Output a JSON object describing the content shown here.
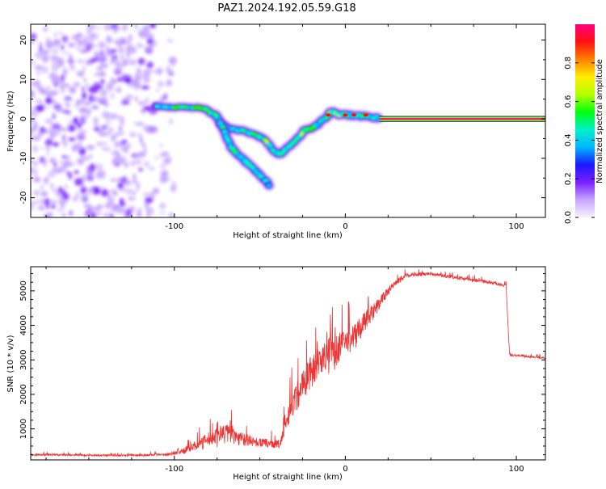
{
  "title": "PAZ1.2024.192.05.59.G18",
  "chart_data": [
    {
      "type": "heatmap",
      "xlabel": "Height of straight line (km)",
      "ylabel": "Frequency (Hz)",
      "xlim": [
        -184,
        117
      ],
      "ylim": [
        -25,
        24
      ],
      "x_ticks": [
        -100,
        0,
        100
      ],
      "x_tick_labels": [
        "-100",
        "0",
        "100"
      ],
      "y_ticks": [
        -20,
        -10,
        0,
        10,
        20
      ],
      "y_tick_labels": [
        "-20",
        "-10",
        "0",
        "10",
        "20"
      ],
      "grid": false,
      "colorbar": {
        "label": "Normalized spectral amplitude",
        "ticks": [
          0.0,
          0.2,
          0.4,
          0.6,
          0.8
        ],
        "tick_labels": [
          "0.0",
          "0.2",
          "0.4",
          "0.6",
          "0.8"
        ],
        "range": [
          0,
          1
        ],
        "colors": [
          "#f7f2ff",
          "#c7a6ff",
          "#7a1fff",
          "#1a18ff",
          "#00b6ff",
          "#00f0c8",
          "#00ff10",
          "#b4ff00",
          "#ffee00",
          "#ff8000",
          "#ff1010",
          "#ff0080"
        ]
      },
      "noise_region": {
        "x": [
          -184,
          -100
        ],
        "y": [
          -25,
          24
        ]
      },
      "upper_branch": [
        {
          "x": -110,
          "y": 3
        },
        {
          "x": -95,
          "y": 3
        },
        {
          "x": -82,
          "y": 2.5
        },
        {
          "x": -76,
          "y": 1
        },
        {
          "x": -73,
          "y": -1
        },
        {
          "x": -68,
          "y": -2.5
        },
        {
          "x": -60,
          "y": -3
        },
        {
          "x": -52,
          "y": -4
        },
        {
          "x": -48,
          "y": -5
        },
        {
          "x": -42,
          "y": -8
        },
        {
          "x": -38,
          "y": -9
        },
        {
          "x": -33,
          "y": -7
        },
        {
          "x": -28,
          "y": -5
        },
        {
          "x": -24,
          "y": -3
        },
        {
          "x": -18,
          "y": -2
        },
        {
          "x": -12,
          "y": 0
        },
        {
          "x": -8,
          "y": 2
        },
        {
          "x": -4,
          "y": 1
        },
        {
          "x": 0,
          "y": 1
        },
        {
          "x": 8,
          "y": 0.8
        },
        {
          "x": 15,
          "y": 0.5
        },
        {
          "x": 20,
          "y": 0.3
        }
      ],
      "lower_branch": [
        {
          "x": -73,
          "y": -1
        },
        {
          "x": -70,
          "y": -4
        },
        {
          "x": -67,
          "y": -7
        },
        {
          "x": -63,
          "y": -9
        },
        {
          "x": -58,
          "y": -11
        },
        {
          "x": -53,
          "y": -13
        },
        {
          "x": -48,
          "y": -15
        },
        {
          "x": -44,
          "y": -17
        }
      ],
      "steady_tone": {
        "x": [
          20,
          117
        ],
        "y": 0
      }
    },
    {
      "type": "line",
      "xlabel": "Height of straight line (km)",
      "ylabel": "SNR (10 * v/v)",
      "xlim": [
        -184,
        117
      ],
      "ylim": [
        100,
        5700
      ],
      "x_ticks": [
        -100,
        0,
        100
      ],
      "x_tick_labels": [
        "-100",
        "0",
        "100"
      ],
      "y_ticks": [
        1000,
        2000,
        3000,
        4000,
        5000
      ],
      "y_tick_labels": [
        "1000",
        "2000",
        "3000",
        "4000",
        "5000"
      ],
      "grid": false,
      "color": "#ee3333",
      "envelope": [
        {
          "x": -184,
          "y": 250,
          "noise": 60
        },
        {
          "x": -130,
          "y": 230,
          "noise": 50
        },
        {
          "x": -105,
          "y": 250,
          "noise": 80
        },
        {
          "x": -95,
          "y": 350,
          "noise": 150
        },
        {
          "x": -80,
          "y": 700,
          "noise": 400
        },
        {
          "x": -70,
          "y": 900,
          "noise": 600
        },
        {
          "x": -60,
          "y": 700,
          "noise": 400
        },
        {
          "x": -50,
          "y": 600,
          "noise": 250
        },
        {
          "x": -38,
          "y": 550,
          "noise": 250
        },
        {
          "x": -33,
          "y": 1500,
          "noise": 700
        },
        {
          "x": -25,
          "y": 2300,
          "noise": 1000
        },
        {
          "x": -15,
          "y": 3000,
          "noise": 900
        },
        {
          "x": -5,
          "y": 3300,
          "noise": 900
        },
        {
          "x": 5,
          "y": 3700,
          "noise": 700
        },
        {
          "x": 15,
          "y": 4300,
          "noise": 500
        },
        {
          "x": 25,
          "y": 5000,
          "noise": 250
        },
        {
          "x": 35,
          "y": 5450,
          "noise": 120
        },
        {
          "x": 50,
          "y": 5500,
          "noise": 100
        },
        {
          "x": 70,
          "y": 5350,
          "noise": 100
        },
        {
          "x": 85,
          "y": 5250,
          "noise": 90
        },
        {
          "x": 94,
          "y": 5150,
          "noise": 90
        },
        {
          "x": 96,
          "y": 3150,
          "noise": 70
        },
        {
          "x": 117,
          "y": 3050,
          "noise": 60
        }
      ]
    }
  ]
}
